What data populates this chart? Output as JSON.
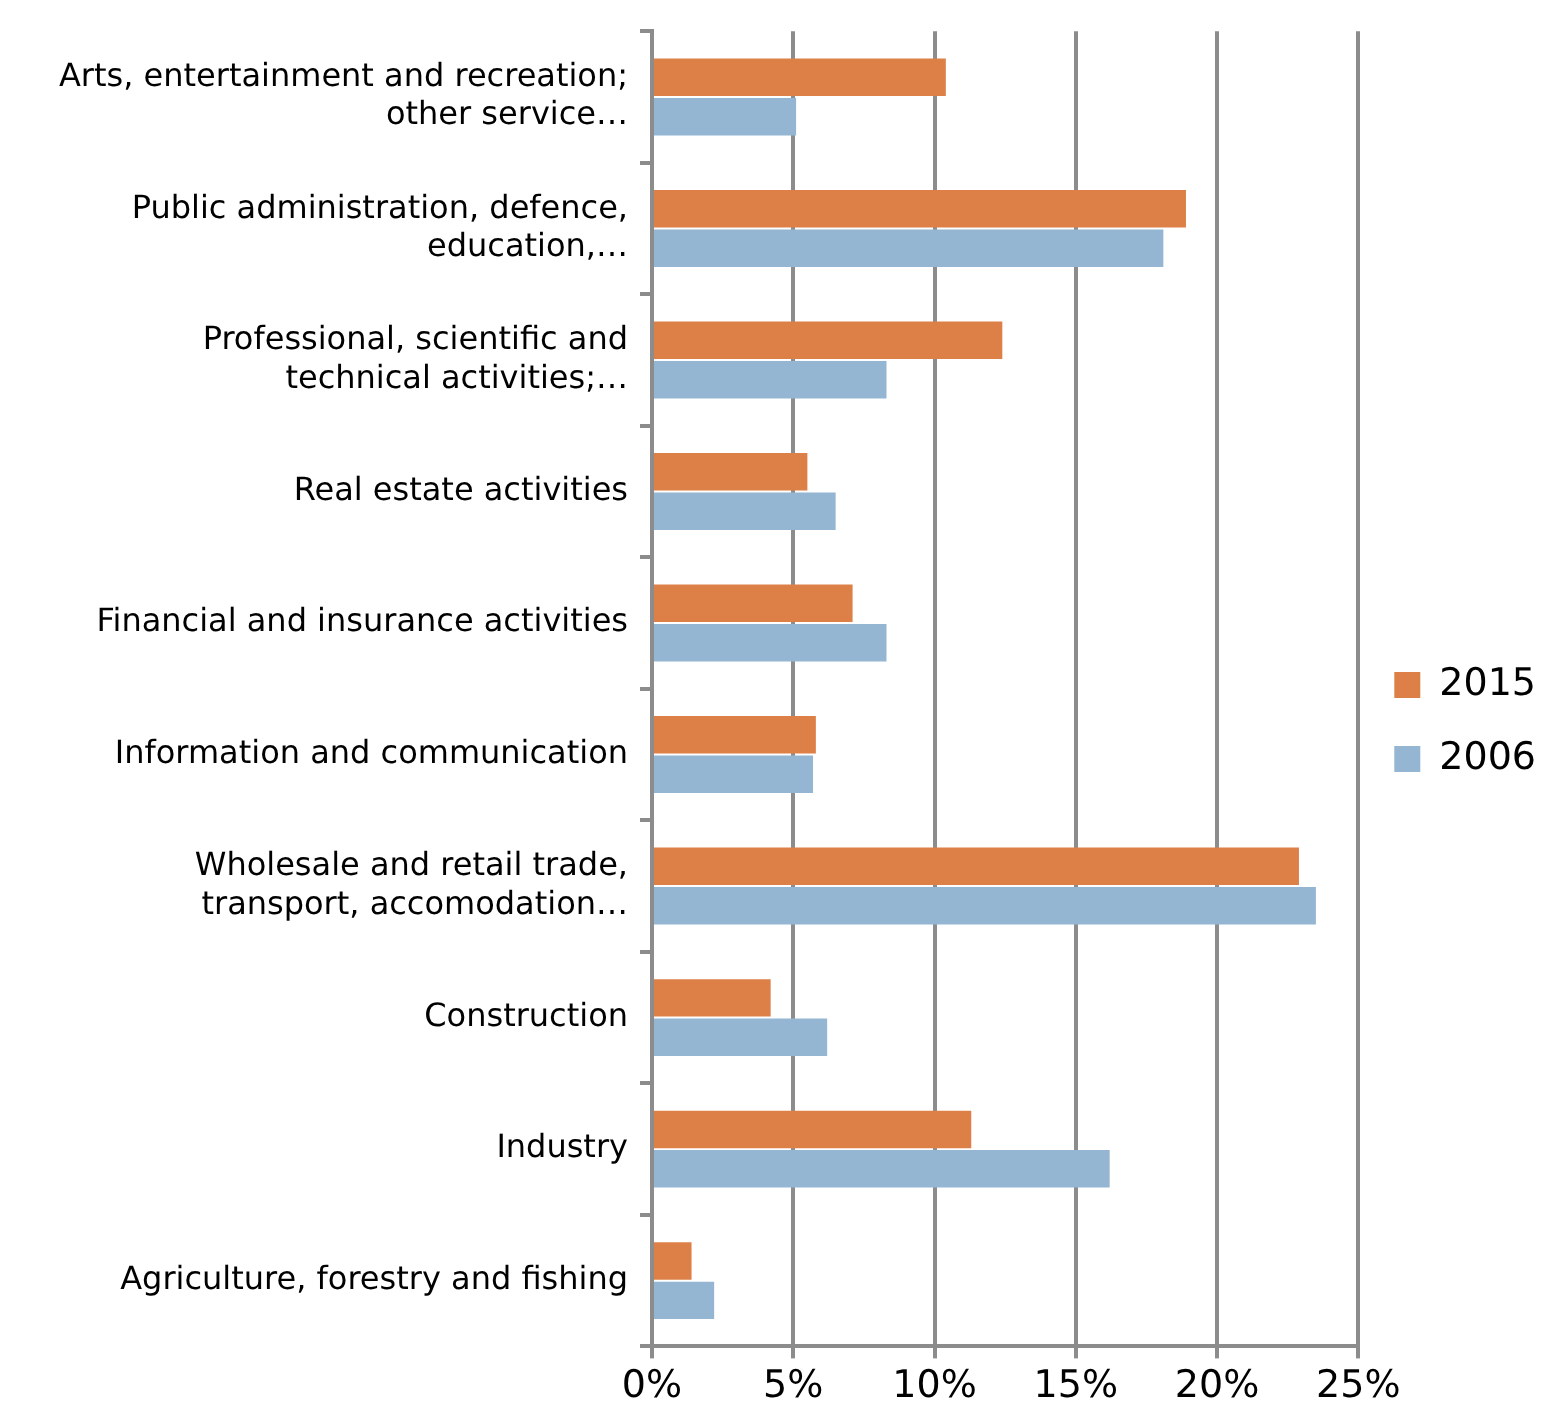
{
  "chart_data": {
    "type": "bar",
    "orientation": "horizontal",
    "categories": [
      "Arts, entertainment and recreation; other service…",
      "Public administration, defence, education,…",
      "Professional, scientific and technical activities;…",
      "Real estate activities",
      "Financial and insurance activities",
      "Information and communication",
      "Wholesale and retail trade, transport, accomodation…",
      "Construction",
      "Industry",
      "Agriculture, forestry and fishing"
    ],
    "series": [
      {
        "name": "2015",
        "color": "#dd8047",
        "values": [
          10.4,
          18.9,
          12.4,
          5.5,
          7.1,
          5.8,
          22.9,
          4.2,
          11.3,
          1.4
        ]
      },
      {
        "name": "2006",
        "color": "#94b6d2",
        "values": [
          5.1,
          18.1,
          8.3,
          6.5,
          8.3,
          5.7,
          23.5,
          6.2,
          16.2,
          2.2
        ]
      }
    ],
    "xlim": [
      0,
      25
    ],
    "xticks": [
      {
        "value": 0,
        "label": "0%"
      },
      {
        "value": 5,
        "label": "5%"
      },
      {
        "value": 10,
        "label": "10%"
      },
      {
        "value": 15,
        "label": "15%"
      },
      {
        "value": 20,
        "label": "20%"
      },
      {
        "value": 25,
        "label": "25%"
      }
    ],
    "grid": "x",
    "legend": "right"
  }
}
